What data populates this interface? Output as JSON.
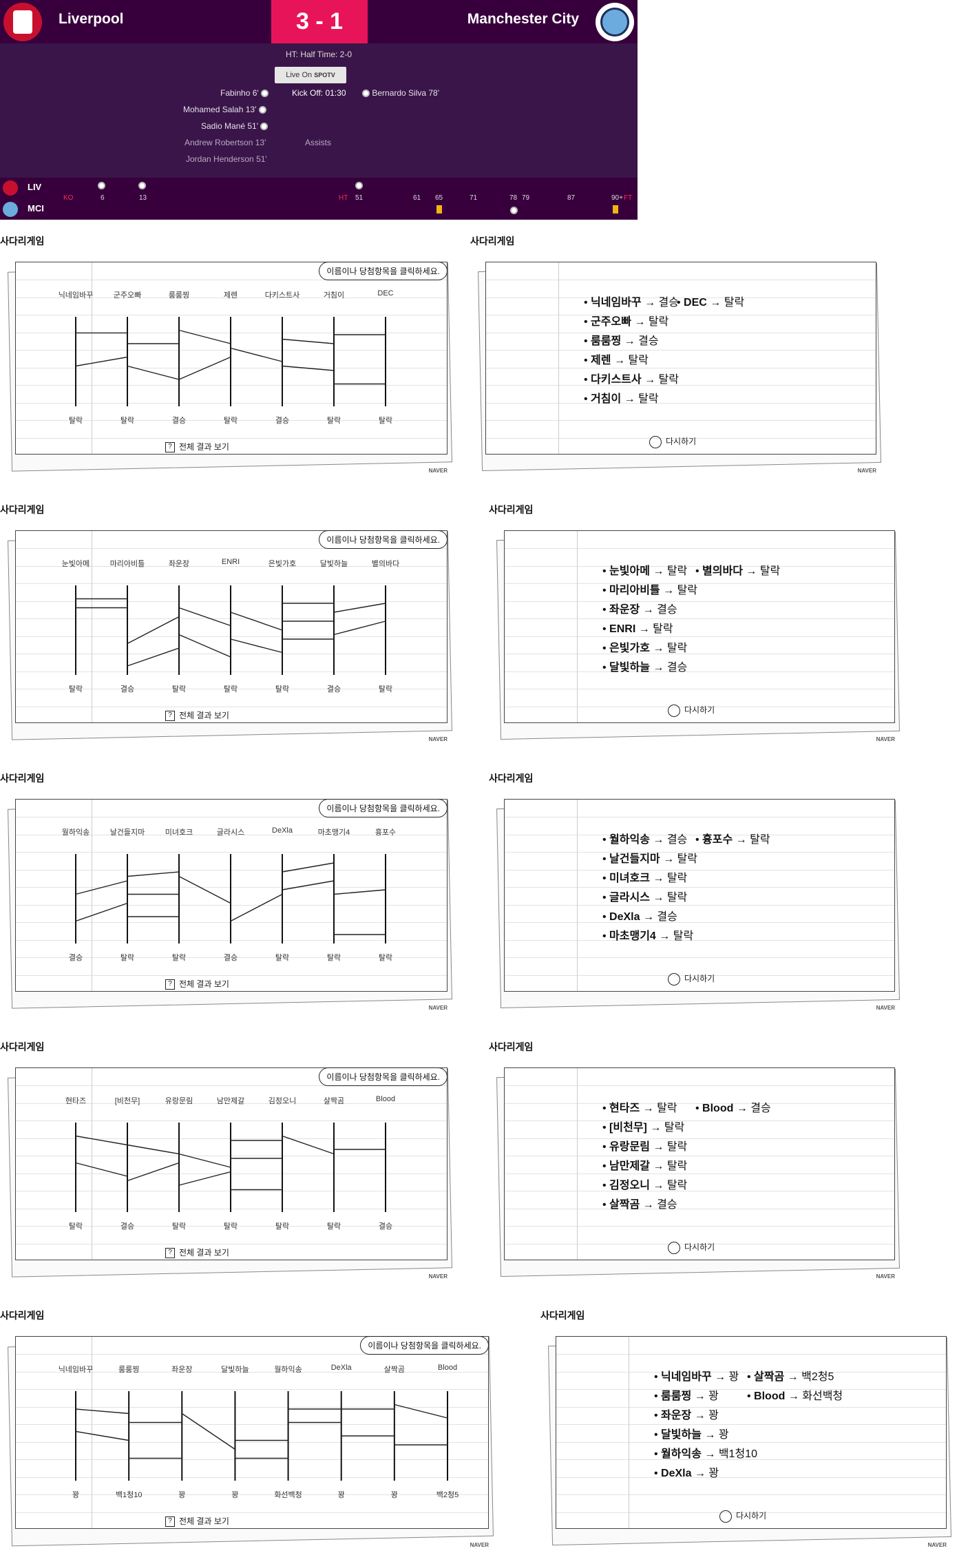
{
  "match": {
    "home": "Liverpool",
    "away": "Manchester City",
    "score": "3 - 1",
    "halftime": "HT: Half Time: 2-0",
    "live_label": "Live On",
    "live_channel": "SPOTV",
    "kickoff": "Kick Off: 01:30",
    "home_events": [
      "Fabinho 6'",
      "Mohamed Salah 13'",
      "Sadio Mané 51'",
      "Andrew Robertson 13'",
      "Jordan Henderson 51'"
    ],
    "away_events": [
      "Bernardo Silva 78'"
    ],
    "assists_label": "Assists",
    "timeline": {
      "home_abbr": "LIV",
      "away_abbr": "MCI",
      "ko": "KO",
      "ht": "HT",
      "ft": "FT",
      "ticks": [
        "6",
        "13",
        "51",
        "61",
        "65",
        "71",
        "78",
        "79",
        "87",
        "90+"
      ]
    },
    "colors": {
      "primary": "#37003c",
      "accent": "#e8145a",
      "card": "#f2b516"
    }
  },
  "games": [
    {
      "title": "사다리게임",
      "bubble": "이름이나 당첨항목을 클릭하세요.",
      "names": [
        "닉네임바꾸",
        "군주오빠",
        "룸룸찡",
        "제렌",
        "다키스트사",
        "거침이",
        "DEC"
      ],
      "results": [
        "탈락",
        "탈락",
        "결승",
        "탈락",
        "결승",
        "탈락",
        "탈락"
      ],
      "show_all": "전체 결과 보기"
    },
    {
      "title": "사다리게임",
      "list": [
        [
          "닉네임바꾸",
          "결승"
        ],
        [
          "군주오빠",
          "탈락"
        ],
        [
          "룸룸찡",
          "결승"
        ],
        [
          "제렌",
          "탈락"
        ],
        [
          "다키스트사",
          "탈락"
        ],
        [
          "거침이",
          "탈락"
        ],
        [
          "DEC",
          "탈락"
        ]
      ],
      "retry": "다시하기"
    },
    {
      "title": "사다리게임",
      "bubble": "이름이나 당첨항목을 클릭하세요.",
      "names": [
        "눈빛아메",
        "마리아비틀",
        "좌운장",
        "ENRI",
        "은빛가호",
        "달빛하늘",
        "별의바다"
      ],
      "results": [
        "탈락",
        "결승",
        "탈락",
        "탈락",
        "탈락",
        "결승",
        "탈락"
      ],
      "show_all": "전체 결과 보기"
    },
    {
      "title": "사다리게임",
      "list": [
        [
          "눈빛아메",
          "탈락"
        ],
        [
          "마리아비틀",
          "탈락"
        ],
        [
          "좌운장",
          "결승"
        ],
        [
          "ENRI",
          "탈락"
        ],
        [
          "은빛가호",
          "탈락"
        ],
        [
          "달빛하늘",
          "결승"
        ],
        [
          "별의바다",
          "탈락"
        ]
      ],
      "retry": "다시하기"
    },
    {
      "title": "사다리게임",
      "bubble": "이름이나 당첨항목을 클릭하세요.",
      "names": [
        "월하익송",
        "날건들지마",
        "미녀호크",
        "글라시스",
        "DeXla",
        "마초맹기4",
        "흉포수"
      ],
      "results": [
        "결승",
        "탈락",
        "탈락",
        "결승",
        "탈락",
        "탈락",
        "탈락"
      ],
      "show_all": "전체 결과 보기"
    },
    {
      "title": "사다리게임",
      "list": [
        [
          "월하익송",
          "결승"
        ],
        [
          "날건들지마",
          "탈락"
        ],
        [
          "미녀호크",
          "탈락"
        ],
        [
          "글라시스",
          "탈락"
        ],
        [
          "DeXla",
          "결승"
        ],
        [
          "마초맹기4",
          "탈락"
        ],
        [
          "흉포수",
          "탈락"
        ]
      ],
      "retry": "다시하기"
    },
    {
      "title": "사다리게임",
      "bubble": "이름이나 당첨항목을 클릭하세요.",
      "names": [
        "현타즈",
        "[비천무]",
        "유랑문림",
        "남만제갈",
        "김정오니",
        "살짝곰",
        "Blood"
      ],
      "results": [
        "탈락",
        "결승",
        "탈락",
        "탈락",
        "탈락",
        "탈락",
        "결승"
      ],
      "show_all": "전체 결과 보기"
    },
    {
      "title": "사다리게임",
      "list": [
        [
          "현타즈",
          "탈락"
        ],
        [
          "[비천무]",
          "탈락"
        ],
        [
          "유랑문림",
          "탈락"
        ],
        [
          "남만제갈",
          "탈락"
        ],
        [
          "김정오니",
          "탈락"
        ],
        [
          "살짝곰",
          "결승"
        ],
        [
          "Blood",
          "결승"
        ]
      ],
      "retry": "다시하기"
    },
    {
      "title": "사다리게임",
      "bubble": "이름이나 당첨항목을 클릭하세요.",
      "names": [
        "닉네임바꾸",
        "룸룸찡",
        "좌운장",
        "달빛하늘",
        "월하익송",
        "DeXla",
        "살짝곰",
        "Blood"
      ],
      "results": [
        "꽝",
        "백1청10",
        "꽝",
        "꽝",
        "화선백청",
        "꽝",
        "꽝",
        "백2청5"
      ],
      "show_all": "전체 결과 보기"
    },
    {
      "title": "사다리게임",
      "list": [
        [
          "닉네임바꾸",
          "꽝"
        ],
        [
          "룸룸찡",
          "꽝"
        ],
        [
          "좌운장",
          "꽝"
        ],
        [
          "달빛하늘",
          "꽝"
        ],
        [
          "월하익송",
          "백1청10"
        ],
        [
          "DeXla",
          "꽝"
        ],
        [
          "살짝곰",
          "백2청5"
        ],
        [
          "Blood",
          "화선백청"
        ]
      ],
      "retry": "다시하기"
    }
  ],
  "naver": "NAVER"
}
